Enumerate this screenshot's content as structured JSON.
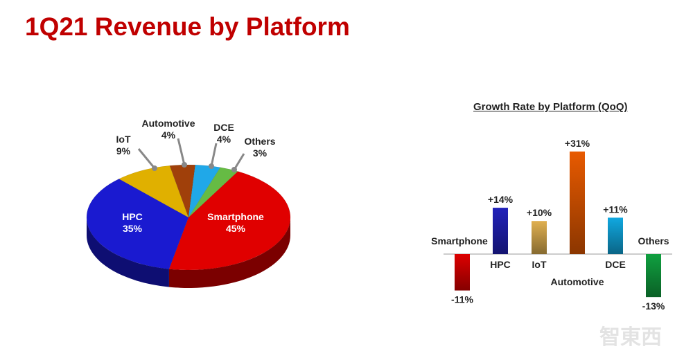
{
  "title": "1Q21 Revenue by Platform",
  "chart_data": [
    {
      "type": "pie",
      "title": "",
      "slices": [
        {
          "label": "Smartphone",
          "value": 45,
          "display": "45%",
          "color": "#e00000"
        },
        {
          "label": "HPC",
          "value": 35,
          "display": "35%",
          "color": "#1a1ad0"
        },
        {
          "label": "IoT",
          "value": 9,
          "display": "9%",
          "color": "#e0b000"
        },
        {
          "label": "Automotive",
          "value": 4,
          "display": "4%",
          "color": "#a0400a"
        },
        {
          "label": "DCE",
          "value": 4,
          "display": "4%",
          "color": "#20a8e8"
        },
        {
          "label": "Others",
          "value": 3,
          "display": "3%",
          "color": "#66bb44"
        }
      ]
    },
    {
      "type": "bar",
      "title": "Growth Rate by Platform (QoQ)",
      "categories": [
        "Smartphone",
        "HPC",
        "IoT",
        "Automotive",
        "DCE",
        "Others"
      ],
      "values": [
        -11,
        14,
        10,
        31,
        11,
        -13
      ],
      "labels": [
        "-11%",
        "+14%",
        "+10%",
        "+31%",
        "+11%",
        "-13%"
      ],
      "colors": [
        "#dd0000",
        "#2222bb",
        "#e0b050",
        "#e85a00",
        "#10a8e0",
        "#10a040"
      ]
    }
  ]
}
